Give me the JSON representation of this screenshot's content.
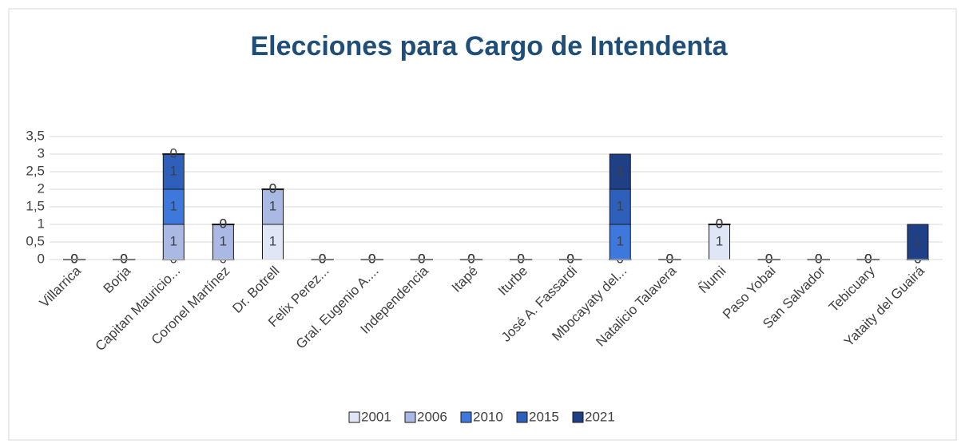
{
  "chart_data": {
    "type": "stacked_bar",
    "title": "Elecciones para Cargo de Intendenta",
    "categories": [
      "Villarrica",
      "Borja",
      "Capitan Mauricio...",
      "Coronel Martínez",
      "Dr. Botrell",
      "Felix Perez...",
      "Gral. Eugenio A....",
      "Independencia",
      "Itapé",
      "Iturbe",
      "José A. Fassardi",
      "Mbocayaty del...",
      "Natalicio Talavera",
      "Ñumi",
      "Paso Yobai",
      "San Salvador",
      "Tebicuary",
      "Yataity del Guairá"
    ],
    "series": [
      {
        "name": "2001",
        "color": "#dfe6f5",
        "values": [
          0,
          0,
          0,
          0,
          1,
          0,
          0,
          0,
          0,
          0,
          0,
          0,
          0,
          1,
          0,
          0,
          0,
          0
        ]
      },
      {
        "name": "2006",
        "color": "#a9b9e3",
        "values": [
          0,
          0,
          1,
          1,
          1,
          0,
          0,
          0,
          0,
          0,
          0,
          0,
          0,
          0,
          0,
          0,
          0,
          0
        ]
      },
      {
        "name": "2010",
        "color": "#3f78dc",
        "values": [
          0,
          0,
          1,
          0,
          0,
          0,
          0,
          0,
          0,
          0,
          0,
          1,
          0,
          0,
          0,
          0,
          0,
          0
        ]
      },
      {
        "name": "2015",
        "color": "#2e5fba",
        "values": [
          0,
          0,
          1,
          0,
          0,
          0,
          0,
          0,
          0,
          0,
          0,
          1,
          0,
          0,
          0,
          0,
          0,
          0
        ]
      },
      {
        "name": "2021",
        "color": "#1f3f86",
        "values": [
          0,
          0,
          0,
          0,
          0,
          0,
          0,
          0,
          0,
          0,
          0,
          1,
          0,
          0,
          0,
          0,
          0,
          1
        ]
      }
    ],
    "ylim": [
      0,
      3.5
    ],
    "yticks": [
      0,
      {
        "value": 0.5,
        "label": "0,5"
      },
      1,
      {
        "value": 1.5,
        "label": "1,5"
      },
      2,
      {
        "value": 2.5,
        "label": "2,5"
      },
      3,
      {
        "value": 3.5,
        "label": "3,5"
      }
    ],
    "grid": true,
    "legend": "bottom"
  }
}
